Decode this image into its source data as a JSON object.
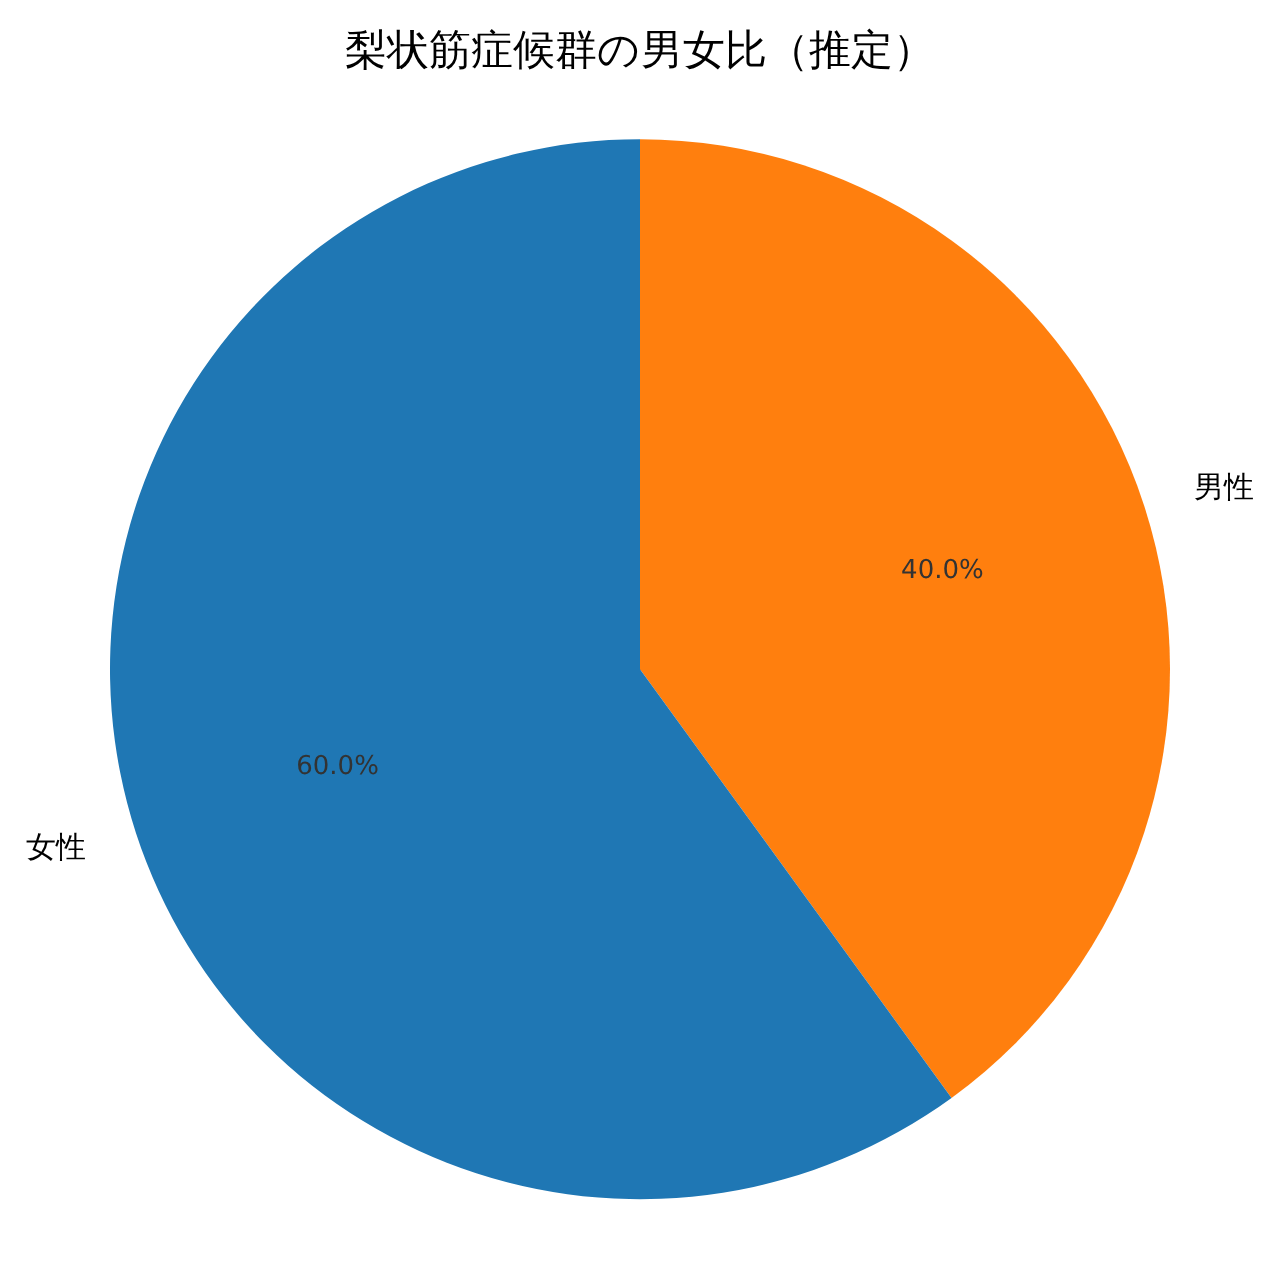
{
  "chart_data": {
    "type": "pie",
    "title": "梨状筋症候群の男女比（推定）",
    "categories": [
      "男性",
      "女性"
    ],
    "values": [
      40,
      60
    ],
    "colors": [
      "#ff7f0e",
      "#1f77b4"
    ],
    "value_labels": [
      "40.0%",
      "60.0%"
    ]
  }
}
